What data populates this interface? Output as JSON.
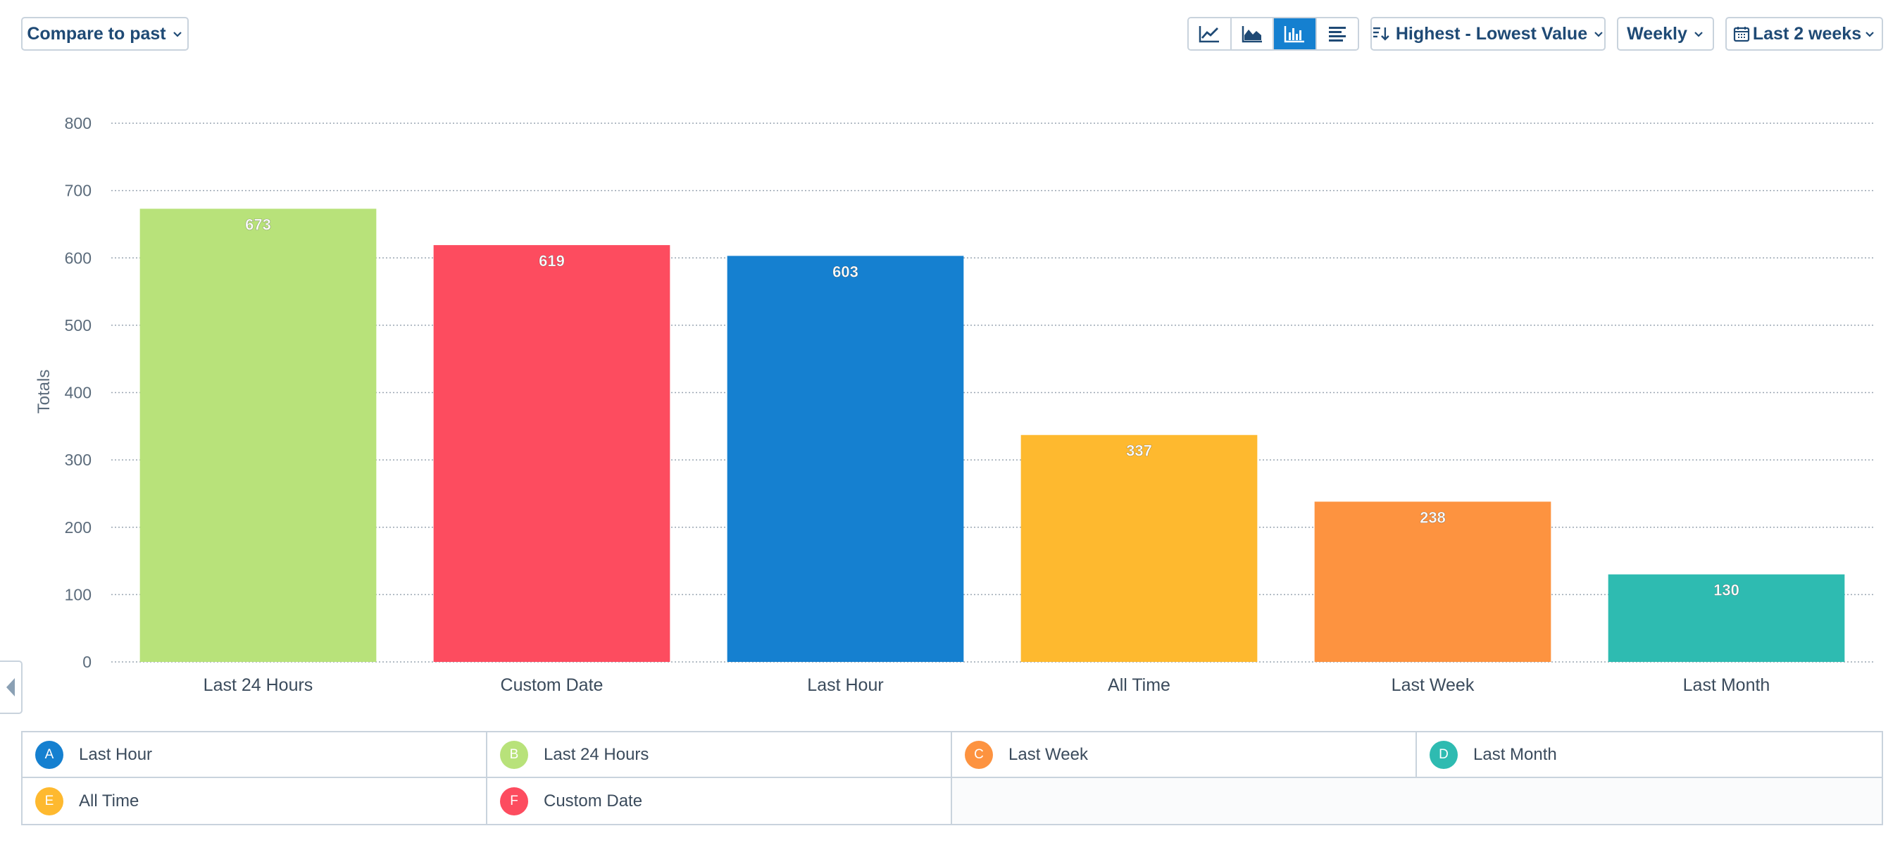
{
  "toolbar": {
    "compare_label": "Compare to past",
    "sort_label": "Highest - Lowest Value",
    "interval_label": "Weekly",
    "range_label": "Last 2 weeks",
    "view_icons": [
      "line-chart-icon",
      "area-chart-icon",
      "bar-chart-icon",
      "table-view-icon"
    ],
    "active_view": "bar-chart-icon"
  },
  "legend": [
    {
      "badge": "A",
      "label": "Last Hour",
      "color": "#1580d0"
    },
    {
      "badge": "B",
      "label": "Last 24 Hours",
      "color": "#b8e27a"
    },
    {
      "badge": "C",
      "label": "Last Week",
      "color": "#fd9340"
    },
    {
      "badge": "D",
      "label": "Last Month",
      "color": "#2ebbb1"
    },
    {
      "badge": "E",
      "label": "All Time",
      "color": "#feb92f"
    },
    {
      "badge": "F",
      "label": "Custom Date",
      "color": "#fd4c5f"
    }
  ],
  "chart_data": {
    "type": "bar",
    "categories": [
      "Last 24 Hours",
      "Custom Date",
      "Last Hour",
      "All Time",
      "Last Week",
      "Last Month"
    ],
    "values": [
      673,
      619,
      603,
      337,
      238,
      130
    ],
    "colors": [
      "#b8e27a",
      "#fd4c5f",
      "#1580d0",
      "#feb92f",
      "#fd9340",
      "#2ebbb1"
    ],
    "ylabel": "Totals",
    "ylim": [
      0,
      800
    ],
    "yticks": [
      0,
      100,
      200,
      300,
      400,
      500,
      600,
      700,
      800
    ],
    "grid": true
  }
}
